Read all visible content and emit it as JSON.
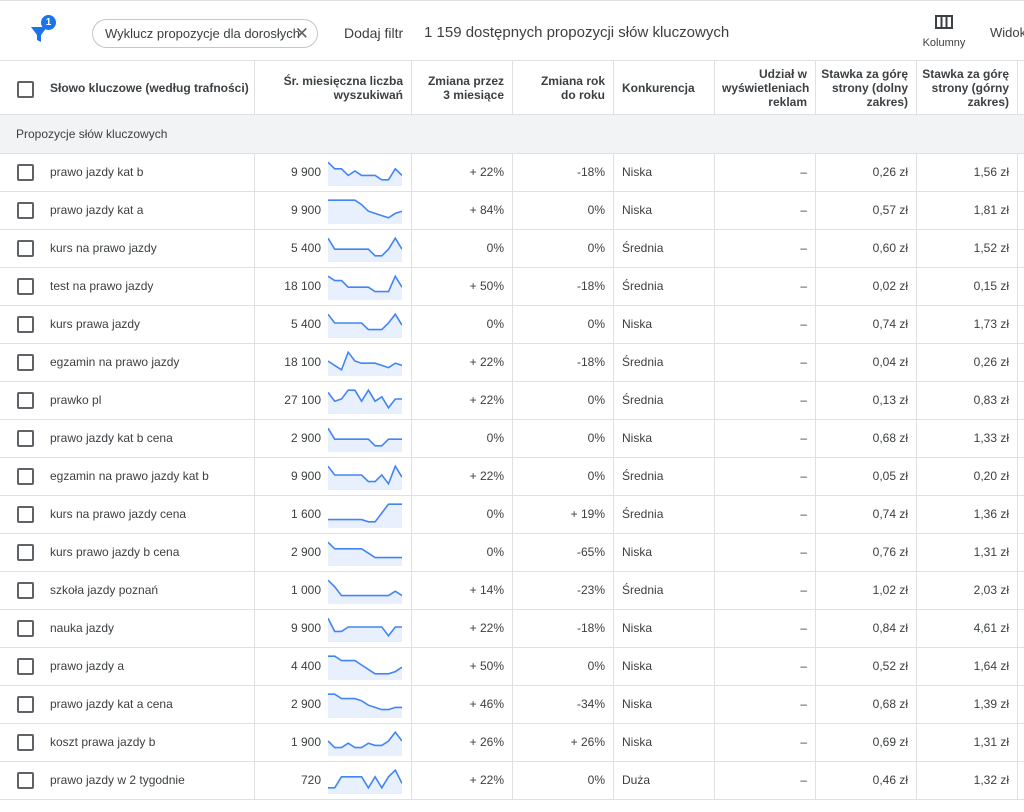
{
  "toolbar": {
    "filter_icon": "filter-icon",
    "filter_count": "1",
    "chip_label": "Wyklucz propozycje dla dorosłych",
    "add_filter": "Dodaj filtr",
    "available": "1 159 dostępnych propozycji słów kluczowych",
    "columns_label": "Kolumny",
    "view_label": "Widok"
  },
  "headers": {
    "keyword": "Słowo kluczowe (według trafności)",
    "avg_searches": "Śr. miesięczna liczba wyszukiwań",
    "change_3m": "Zmiana przez 3 miesiące",
    "change_yoy": "Zmiana rok do roku",
    "competition": "Konkurencja",
    "impression_share": "Udział w wyświetleniach reklam",
    "bid_low": "Stawka za górę strony (dolny zakres)",
    "bid_high": "Stawka za górę strony (górny zakres)"
  },
  "group_label": "Propozycje słów kluczowych",
  "colors": {
    "spark_line": "#4285f4",
    "spark_fill": "#e8f0fe",
    "group_bg": "#f1f3f4"
  },
  "rows": [
    {
      "keyword": "prawo jazdy kat b",
      "volume": "9 900",
      "spark": [
        0.9,
        0.6,
        0.6,
        0.3,
        0.5,
        0.3,
        0.3,
        0.3,
        0.1,
        0.1,
        0.6,
        0.3
      ],
      "change_3m": "+ 22%",
      "change_yoy": "-18%",
      "competition": "Niska",
      "share": "–",
      "bid_low": "0,26 zł",
      "bid_high": "1,56 zł"
    },
    {
      "keyword": "prawo jazdy kat a",
      "volume": "9 900",
      "spark": [
        0.9,
        0.9,
        0.9,
        0.9,
        0.9,
        0.7,
        0.4,
        0.3,
        0.2,
        0.1,
        0.3,
        0.4
      ],
      "change_3m": "+ 84%",
      "change_yoy": "0%",
      "competition": "Niska",
      "share": "–",
      "bid_low": "0,57 zł",
      "bid_high": "1,81 zł"
    },
    {
      "keyword": "kurs na prawo jazdy",
      "volume": "5 400",
      "spark": [
        0.9,
        0.4,
        0.4,
        0.4,
        0.4,
        0.4,
        0.4,
        0.1,
        0.1,
        0.4,
        0.9,
        0.4
      ],
      "change_3m": "0%",
      "change_yoy": "0%",
      "competition": "Średnia",
      "share": "–",
      "bid_low": "0,60 zł",
      "bid_high": "1,52 zł"
    },
    {
      "keyword": "test na prawo jazdy",
      "volume": "18 100",
      "spark": [
        0.9,
        0.7,
        0.7,
        0.4,
        0.4,
        0.4,
        0.4,
        0.2,
        0.2,
        0.2,
        0.9,
        0.4
      ],
      "change_3m": "+ 50%",
      "change_yoy": "-18%",
      "competition": "Średnia",
      "share": "–",
      "bid_low": "0,02 zł",
      "bid_high": "0,15 zł"
    },
    {
      "keyword": "kurs prawa jazdy",
      "volume": "5 400",
      "spark": [
        0.9,
        0.5,
        0.5,
        0.5,
        0.5,
        0.5,
        0.2,
        0.2,
        0.2,
        0.5,
        0.9,
        0.4
      ],
      "change_3m": "0%",
      "change_yoy": "0%",
      "competition": "Niska",
      "share": "–",
      "bid_low": "0,74 zł",
      "bid_high": "1,73 zł"
    },
    {
      "keyword": "egzamin na prawo jazdy",
      "volume": "18 100",
      "spark": [
        0.5,
        0.3,
        0.1,
        0.9,
        0.5,
        0.4,
        0.4,
        0.4,
        0.3,
        0.2,
        0.4,
        0.3
      ],
      "change_3m": "+ 22%",
      "change_yoy": "-18%",
      "competition": "Średnia",
      "share": "–",
      "bid_low": "0,04 zł",
      "bid_high": "0,26 zł"
    },
    {
      "keyword": "prawko pl",
      "volume": "27 100",
      "spark": [
        0.8,
        0.4,
        0.5,
        0.9,
        0.9,
        0.4,
        0.9,
        0.4,
        0.6,
        0.1,
        0.5,
        0.5
      ],
      "change_3m": "+ 22%",
      "change_yoy": "0%",
      "competition": "Średnia",
      "share": "–",
      "bid_low": "0,13 zł",
      "bid_high": "0,83 zł"
    },
    {
      "keyword": "prawo jazdy kat b cena",
      "volume": "2 900",
      "spark": [
        0.9,
        0.4,
        0.4,
        0.4,
        0.4,
        0.4,
        0.4,
        0.1,
        0.1,
        0.4,
        0.4,
        0.4
      ],
      "change_3m": "0%",
      "change_yoy": "0%",
      "competition": "Niska",
      "share": "–",
      "bid_low": "0,68 zł",
      "bid_high": "1,33 zł"
    },
    {
      "keyword": "egzamin na prawo jazdy kat b",
      "volume": "9 900",
      "spark": [
        0.9,
        0.5,
        0.5,
        0.5,
        0.5,
        0.5,
        0.2,
        0.2,
        0.5,
        0.1,
        0.9,
        0.4
      ],
      "change_3m": "+ 22%",
      "change_yoy": "0%",
      "competition": "Średnia",
      "share": "–",
      "bid_low": "0,05 zł",
      "bid_high": "0,20 zł"
    },
    {
      "keyword": "kurs na prawo jazdy cena",
      "volume": "1 600",
      "spark": [
        0.2,
        0.2,
        0.2,
        0.2,
        0.2,
        0.2,
        0.1,
        0.1,
        0.5,
        0.9,
        0.9,
        0.9
      ],
      "change_3m": "0%",
      "change_yoy": "+ 19%",
      "competition": "Średnia",
      "share": "–",
      "bid_low": "0,74 zł",
      "bid_high": "1,36 zł"
    },
    {
      "keyword": "kurs prawo jazdy b cena",
      "volume": "2 900",
      "spark": [
        0.9,
        0.6,
        0.6,
        0.6,
        0.6,
        0.6,
        0.4,
        0.2,
        0.2,
        0.2,
        0.2,
        0.2
      ],
      "change_3m": "0%",
      "change_yoy": "-65%",
      "competition": "Niska",
      "share": "–",
      "bid_low": "0,76 zł",
      "bid_high": "1,31 zł"
    },
    {
      "keyword": "szkoła jazdy poznań",
      "volume": "1 000",
      "spark": [
        0.9,
        0.6,
        0.2,
        0.2,
        0.2,
        0.2,
        0.2,
        0.2,
        0.2,
        0.2,
        0.4,
        0.2
      ],
      "change_3m": "+ 14%",
      "change_yoy": "-23%",
      "competition": "Średnia",
      "share": "–",
      "bid_low": "1,02 zł",
      "bid_high": "2,03 zł"
    },
    {
      "keyword": "nauka jazdy",
      "volume": "9 900",
      "spark": [
        0.9,
        0.3,
        0.3,
        0.5,
        0.5,
        0.5,
        0.5,
        0.5,
        0.5,
        0.1,
        0.5,
        0.5
      ],
      "change_3m": "+ 22%",
      "change_yoy": "-18%",
      "competition": "Niska",
      "share": "–",
      "bid_low": "0,84 zł",
      "bid_high": "4,61 zł"
    },
    {
      "keyword": "prawo jazdy a",
      "volume": "4 400",
      "spark": [
        0.9,
        0.9,
        0.7,
        0.7,
        0.7,
        0.5,
        0.3,
        0.1,
        0.1,
        0.1,
        0.2,
        0.4
      ],
      "change_3m": "+ 50%",
      "change_yoy": "0%",
      "competition": "Niska",
      "share": "–",
      "bid_low": "0,52 zł",
      "bid_high": "1,64 zł"
    },
    {
      "keyword": "prawo jazdy kat a cena",
      "volume": "2 900",
      "spark": [
        0.9,
        0.9,
        0.7,
        0.7,
        0.7,
        0.6,
        0.4,
        0.3,
        0.2,
        0.2,
        0.3,
        0.3
      ],
      "change_3m": "+ 46%",
      "change_yoy": "-34%",
      "competition": "Niska",
      "share": "–",
      "bid_low": "0,68 zł",
      "bid_high": "1,39 zł"
    },
    {
      "keyword": "koszt prawa jazdy b",
      "volume": "1 900",
      "spark": [
        0.5,
        0.2,
        0.2,
        0.4,
        0.2,
        0.2,
        0.4,
        0.3,
        0.3,
        0.5,
        0.9,
        0.5
      ],
      "change_3m": "+ 26%",
      "change_yoy": "+ 26%",
      "competition": "Niska",
      "share": "–",
      "bid_low": "0,69 zł",
      "bid_high": "1,31 zł"
    },
    {
      "keyword": "prawo jazdy w 2 tygodnie",
      "volume": "720",
      "spark": [
        0.1,
        0.1,
        0.6,
        0.6,
        0.6,
        0.6,
        0.1,
        0.6,
        0.1,
        0.6,
        0.9,
        0.3
      ],
      "change_3m": "+ 22%",
      "change_yoy": "0%",
      "competition": "Duża",
      "share": "–",
      "bid_low": "0,46 zł",
      "bid_high": "1,32 zł"
    }
  ]
}
